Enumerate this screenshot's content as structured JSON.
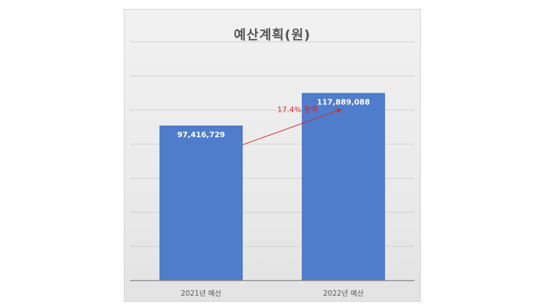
{
  "chart_data": {
    "type": "bar",
    "title": "예산계획(원)",
    "categories": [
      "2021년 예산",
      "2022년 예산"
    ],
    "values": [
      97416729,
      117889088
    ],
    "value_labels": [
      "97,416,729",
      "117,889,088"
    ],
    "ylim": [
      0,
      150000000
    ],
    "grid": true,
    "legend": "none",
    "annotation": {
      "text": "17.4% 증액",
      "from_category": 0,
      "to_category": 1
    },
    "colors": {
      "bar": "#4f7dcb",
      "annotation": "#d42a2a",
      "grid": "#cfcfcf",
      "axis": "#8c8c8c",
      "tick_text": "#595959"
    }
  }
}
